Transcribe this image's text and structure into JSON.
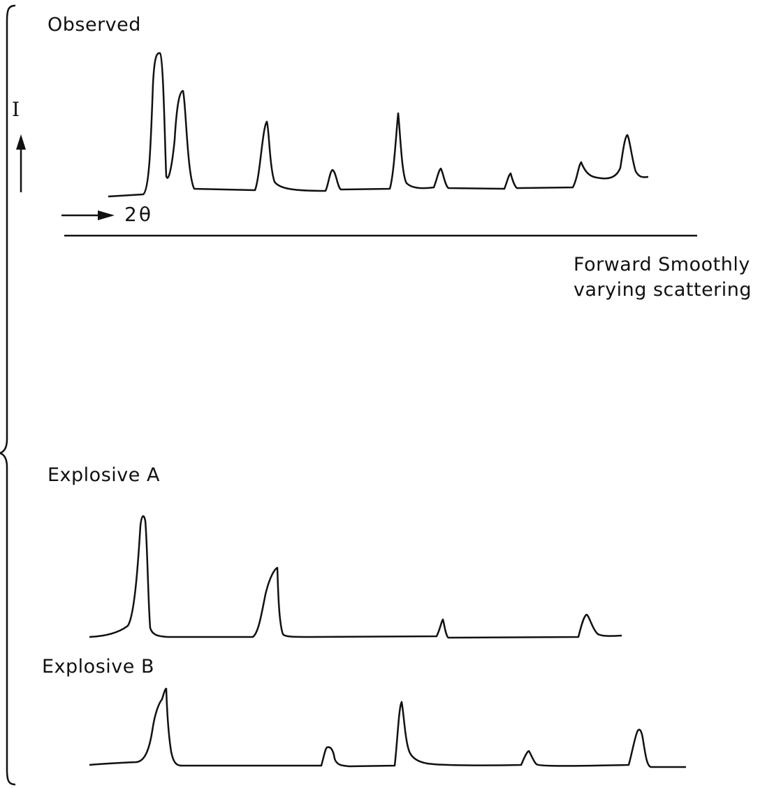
{
  "colors": {
    "ink": "#111111",
    "background": "#ffffff"
  },
  "labels": {
    "observed": "Observed",
    "intensity_axis": "I",
    "angle_axis": "2θ",
    "forward_line1": "Forward  Smoothly",
    "forward_line2": "varying scattering",
    "explosive_a": "Explosive  A",
    "explosive_b": "Explosive B"
  }
}
